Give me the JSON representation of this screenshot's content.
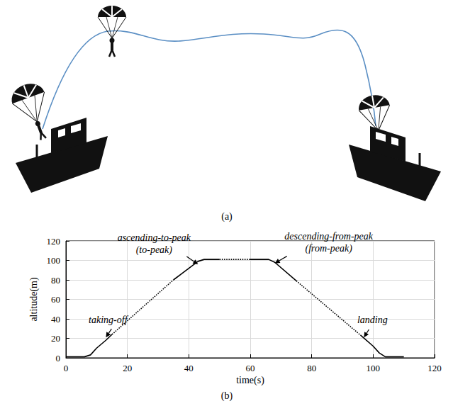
{
  "figure_a": {
    "label": "(a)"
  },
  "chart_data": {
    "type": "line",
    "caption": "(b)",
    "xlabel": "time(s)",
    "ylabel": "altitude(m)",
    "xlim": [
      0,
      120
    ],
    "ylim": [
      0,
      120
    ],
    "xticks": [
      0,
      20,
      40,
      60,
      80,
      100,
      120
    ],
    "yticks": [
      0,
      20,
      40,
      60,
      80,
      100,
      120
    ],
    "grid": true,
    "series": [
      {
        "color": "#000000",
        "line_style": "solid",
        "x": [
          0,
          6,
          8,
          10,
          13,
          15
        ],
        "values": [
          1,
          1,
          3,
          10,
          18,
          24
        ]
      },
      {
        "color": "#000000",
        "line_style": "dotted",
        "x": [
          15,
          35
        ],
        "values": [
          24,
          80
        ]
      },
      {
        "color": "#000000",
        "line_style": "solid",
        "x": [
          35,
          43,
          45,
          50
        ],
        "values": [
          80,
          99,
          101,
          101
        ]
      },
      {
        "color": "#000000",
        "line_style": "dotted",
        "x": [
          50,
          60
        ],
        "values": [
          101,
          101
        ]
      },
      {
        "color": "#000000",
        "line_style": "solid",
        "x": [
          60,
          66,
          68,
          75
        ],
        "values": [
          101,
          101,
          98,
          79
        ]
      },
      {
        "color": "#000000",
        "line_style": "dotted",
        "x": [
          75,
          96
        ],
        "values": [
          79,
          23
        ]
      },
      {
        "color": "#000000",
        "line_style": "solid",
        "x": [
          96,
          100,
          102,
          104,
          110
        ],
        "values": [
          23,
          12,
          5,
          1,
          1
        ]
      }
    ],
    "annotations": [
      {
        "lines": [
          "taking-off"
        ],
        "x": 13,
        "y": 21
      },
      {
        "lines": [
          "ascending-to-peak",
          "(to-peak)"
        ],
        "x": 43,
        "y": 96
      },
      {
        "lines": [
          "descending-from-peak",
          "(from-peak)"
        ],
        "x": 68,
        "y": 97
      },
      {
        "lines": [
          "landing"
        ],
        "x": 97,
        "y": 21
      }
    ]
  }
}
